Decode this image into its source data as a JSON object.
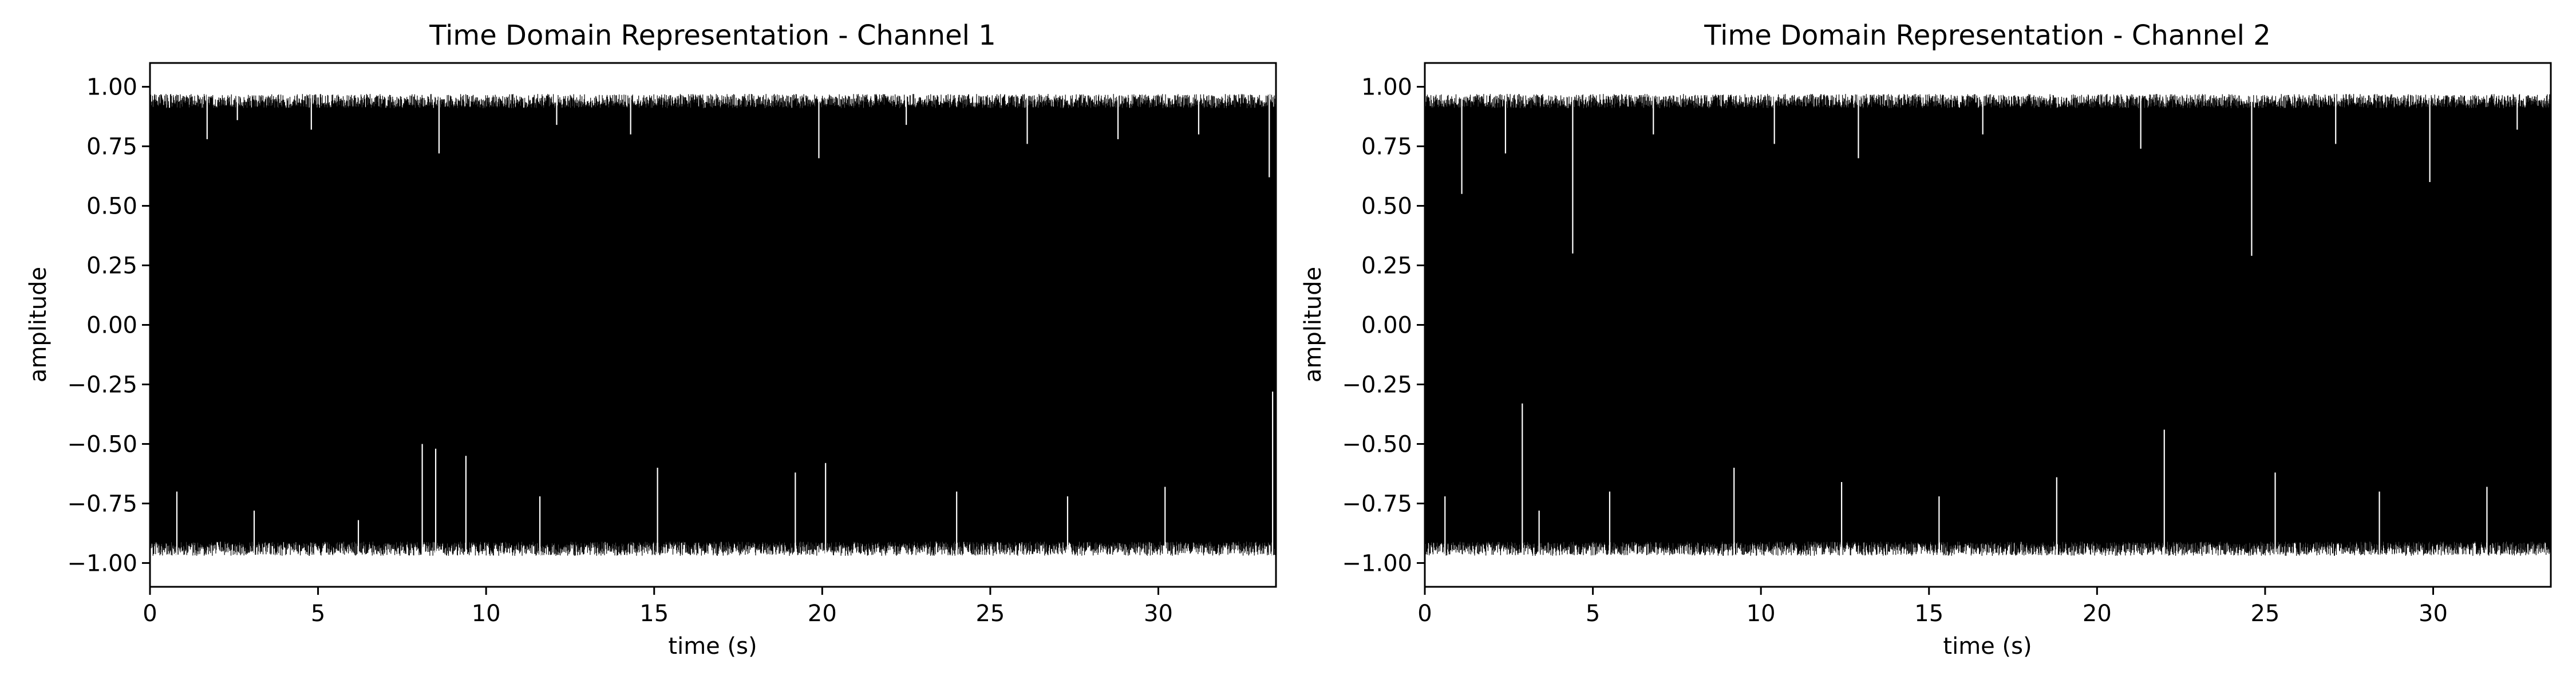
{
  "chart_data": [
    {
      "type": "line",
      "title": "Time Domain Representation - Channel 1",
      "xlabel": "time (s)",
      "ylabel": "amplitude",
      "xlim": [
        0,
        33.5
      ],
      "ylim": [
        -1.1,
        1.1
      ],
      "x_ticks": [
        0,
        5,
        10,
        15,
        20,
        25,
        30
      ],
      "x_tick_labels": [
        "0",
        "5",
        "10",
        "15",
        "20",
        "25",
        "30"
      ],
      "y_ticks": [
        1.0,
        0.75,
        0.5,
        0.25,
        0.0,
        -0.25,
        -0.5,
        -0.75,
        -1.0
      ],
      "y_tick_labels": [
        "1.00",
        "0.75",
        "0.50",
        "0.25",
        "0.00",
        "−0.25",
        "−0.50",
        "−0.75",
        "−1.00"
      ],
      "grid": false,
      "series": [
        {
          "name": "Channel 1",
          "color": "#000000",
          "description_values": {
            "duration_s": 33.5,
            "max": 1.0,
            "min": -1.0,
            "typical_peak_high": 0.97,
            "typical_peak_low": -0.97,
            "dip_highs": [
              {
                "t": 1.7,
                "v": 0.78
              },
              {
                "t": 2.6,
                "v": 0.86
              },
              {
                "t": 4.8,
                "v": 0.82
              },
              {
                "t": 8.6,
                "v": 0.72
              },
              {
                "t": 12.1,
                "v": 0.84
              },
              {
                "t": 14.3,
                "v": 0.8
              },
              {
                "t": 19.9,
                "v": 0.7
              },
              {
                "t": 22.5,
                "v": 0.84
              },
              {
                "t": 26.1,
                "v": 0.76
              },
              {
                "t": 28.8,
                "v": 0.78
              },
              {
                "t": 31.2,
                "v": 0.8
              },
              {
                "t": 33.3,
                "v": 0.62
              }
            ],
            "dip_lows": [
              {
                "t": 0.8,
                "v": -0.7
              },
              {
                "t": 3.1,
                "v": -0.78
              },
              {
                "t": 6.2,
                "v": -0.82
              },
              {
                "t": 8.1,
                "v": -0.5
              },
              {
                "t": 8.5,
                "v": -0.52
              },
              {
                "t": 9.4,
                "v": -0.55
              },
              {
                "t": 11.6,
                "v": -0.72
              },
              {
                "t": 15.1,
                "v": -0.6
              },
              {
                "t": 19.2,
                "v": -0.62
              },
              {
                "t": 20.1,
                "v": -0.58
              },
              {
                "t": 24.0,
                "v": -0.7
              },
              {
                "t": 27.3,
                "v": -0.72
              },
              {
                "t": 30.2,
                "v": -0.68
              },
              {
                "t": 33.4,
                "v": -0.28
              }
            ]
          }
        }
      ]
    },
    {
      "type": "line",
      "title": "Time Domain Representation - Channel 2",
      "xlabel": "time (s)",
      "ylabel": "amplitude",
      "xlim": [
        0,
        33.5
      ],
      "ylim": [
        -1.1,
        1.1
      ],
      "x_ticks": [
        0,
        5,
        10,
        15,
        20,
        25,
        30
      ],
      "x_tick_labels": [
        "0",
        "5",
        "10",
        "15",
        "20",
        "25",
        "30"
      ],
      "y_ticks": [
        1.0,
        0.75,
        0.5,
        0.25,
        0.0,
        -0.25,
        -0.5,
        -0.75,
        -1.0
      ],
      "y_tick_labels": [
        "1.00",
        "0.75",
        "0.50",
        "0.25",
        "0.00",
        "−0.25",
        "−0.50",
        "−0.75",
        "−1.00"
      ],
      "grid": false,
      "series": [
        {
          "name": "Channel 2",
          "color": "#000000",
          "description_values": {
            "duration_s": 33.5,
            "max": 1.0,
            "min": -1.0,
            "typical_peak_high": 0.97,
            "typical_peak_low": -0.97,
            "dip_highs": [
              {
                "t": 1.1,
                "v": 0.55
              },
              {
                "t": 2.4,
                "v": 0.72
              },
              {
                "t": 4.4,
                "v": 0.3
              },
              {
                "t": 6.8,
                "v": 0.8
              },
              {
                "t": 10.4,
                "v": 0.76
              },
              {
                "t": 12.9,
                "v": 0.7
              },
              {
                "t": 16.6,
                "v": 0.8
              },
              {
                "t": 21.3,
                "v": 0.74
              },
              {
                "t": 24.6,
                "v": 0.29
              },
              {
                "t": 27.1,
                "v": 0.76
              },
              {
                "t": 29.9,
                "v": 0.6
              },
              {
                "t": 32.5,
                "v": 0.82
              }
            ],
            "dip_lows": [
              {
                "t": 0.6,
                "v": -0.72
              },
              {
                "t": 2.9,
                "v": -0.33
              },
              {
                "t": 3.4,
                "v": -0.78
              },
              {
                "t": 5.5,
                "v": -0.7
              },
              {
                "t": 9.2,
                "v": -0.6
              },
              {
                "t": 12.4,
                "v": -0.66
              },
              {
                "t": 15.3,
                "v": -0.72
              },
              {
                "t": 18.8,
                "v": -0.64
              },
              {
                "t": 22.0,
                "v": -0.44
              },
              {
                "t": 25.3,
                "v": -0.62
              },
              {
                "t": 28.4,
                "v": -0.7
              },
              {
                "t": 31.6,
                "v": -0.68
              }
            ]
          }
        }
      ]
    }
  ]
}
